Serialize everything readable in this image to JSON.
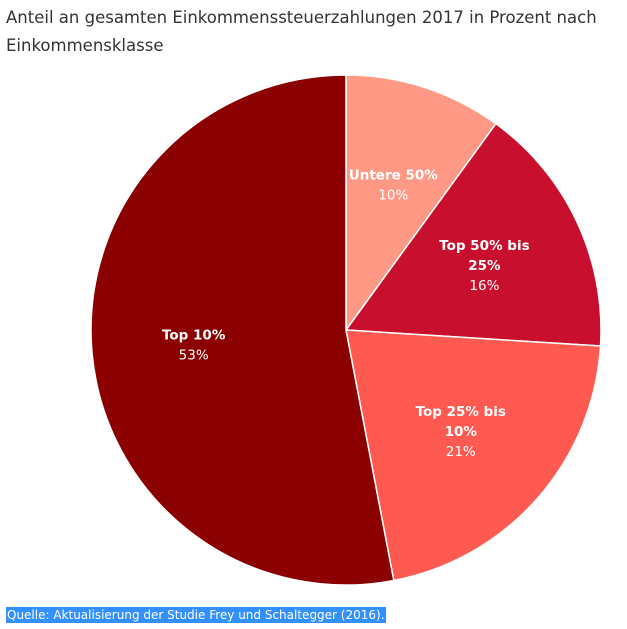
{
  "chart_data": {
    "type": "pie",
    "title": "Anteil an gesamten Einkommenssteuerzahlungen 2017 in Prozent nach Einkommensklasse",
    "slices": [
      {
        "label": "Untere 50%",
        "value": 10,
        "value_label": "10%",
        "color": "#ff9985"
      },
      {
        "label": "Top 50% bis 25%",
        "label_lines": [
          "Top 50% bis",
          "25%"
        ],
        "value": 16,
        "value_label": "16%",
        "color": "#c8102e"
      },
      {
        "label": "Top 25% bis 10%",
        "label_lines": [
          "Top 25% bis",
          "10%"
        ],
        "value": 21,
        "value_label": "21%",
        "color": "#ff5a52"
      },
      {
        "label": "Top 10%",
        "value": 53,
        "value_label": "53%",
        "color": "#8b0000"
      }
    ],
    "start": "top",
    "direction": "clockwise",
    "legend": "none"
  },
  "source": "Quelle: Aktualisierung der Studie Frey und Schaltegger (2016)."
}
